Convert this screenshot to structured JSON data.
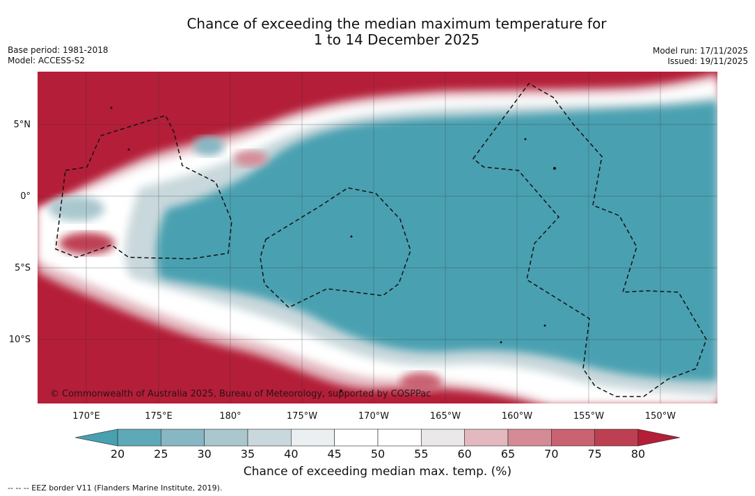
{
  "title": {
    "line1": "Chance of exceeding the median maximum temperature for",
    "line2": "1 to 14 December 2025"
  },
  "meta": {
    "base_period": "Base period: 1981-2018",
    "model": "Model: ACCESS-S2",
    "model_run": "Model run: 17/11/2025",
    "issued": "Issued: 19/11/2025"
  },
  "map": {
    "lon_labels": [
      "170°E",
      "175°E",
      "180°",
      "175°W",
      "170°W",
      "165°W",
      "160°W",
      "155°W",
      "150°W"
    ],
    "lat_labels": [
      "5°N",
      "0°",
      "5°S",
      "10°S"
    ],
    "copyright": "© Commonwealth of Australia 2025, Bureau of Meteorology, supported by COSPPac",
    "colors": {
      "hot": "#b41e38",
      "cool": "#48a0b1",
      "neutral": "#ffffff"
    }
  },
  "colorbar": {
    "ticks": [
      "20",
      "25",
      "30",
      "35",
      "40",
      "45",
      "50",
      "55",
      "60",
      "65",
      "70",
      "75",
      "80"
    ],
    "colors": [
      "#5da9b8",
      "#86b7c3",
      "#a9c7cd",
      "#c9d8dc",
      "#ebeff1",
      "#ffffff",
      "#ffffff",
      "#ebe8ea",
      "#e3b8bf",
      "#d48b96",
      "#c96271",
      "#bd4052"
    ],
    "low_color": "#48a0b1",
    "high_color": "#b41e38",
    "title": "Chance of exceeding median max. temp. (%)"
  },
  "footnote": "--  --  -- EEZ border V11 (Flanders Marine Institute, 2019)."
}
